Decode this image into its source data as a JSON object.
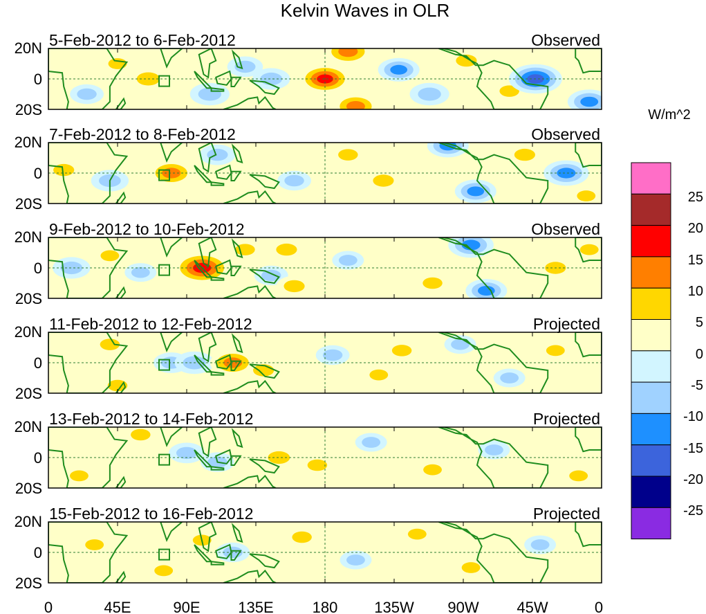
{
  "chart_data": {
    "type": "heatmap",
    "title": "Kelvin Waves in OLR",
    "variable": "OLR anomaly",
    "units": "W/m^2",
    "x_ticks": [
      "0",
      "45E",
      "90E",
      "135E",
      "180",
      "135W",
      "90W",
      "45W",
      "0"
    ],
    "y_ticks": [
      "20N",
      "0",
      "20S"
    ],
    "lon_range": [
      0,
      360
    ],
    "lat_range": [
      -20,
      20
    ],
    "colorbar": {
      "label": "W/m^2",
      "levels": [
        "25",
        "20",
        "15",
        "10",
        "5",
        "0",
        "-5",
        "-10",
        "-15",
        "-20",
        "-25"
      ],
      "colors": [
        "#ff6ec7",
        "#a52a2a",
        "#ff0000",
        "#ff7f00",
        "#ffd700",
        "#ffffc8",
        "#d2f5ff",
        "#a0d2ff",
        "#1e90ff",
        "#3c64dc",
        "#00008b",
        "#8a2be2"
      ]
    },
    "panels": [
      {
        "date_range": "5-Feb-2012 to 6-Feb-2012",
        "status": "Observed",
        "blobs": [
          {
            "lon": 65,
            "lat": 0,
            "value": 9
          },
          {
            "lon": 105,
            "lat": -10,
            "value": -9
          },
          {
            "lon": 128,
            "lat": 8,
            "value": -7
          },
          {
            "lon": 145,
            "lat": 0,
            "value": -8
          },
          {
            "lon": 180,
            "lat": 0,
            "value": 15
          },
          {
            "lon": 195,
            "lat": 18,
            "value": 13
          },
          {
            "lon": 200,
            "lat": -18,
            "value": 12
          },
          {
            "lon": 228,
            "lat": 6,
            "value": -10
          },
          {
            "lon": 248,
            "lat": -10,
            "value": -9
          },
          {
            "lon": 272,
            "lat": 12,
            "value": 7
          },
          {
            "lon": 300,
            "lat": -8,
            "value": 6
          },
          {
            "lon": 317,
            "lat": 0,
            "value": -16
          },
          {
            "lon": 352,
            "lat": -15,
            "value": -11
          },
          {
            "lon": 25,
            "lat": -10,
            "value": -6
          },
          {
            "lon": 45,
            "lat": 10,
            "value": 5
          }
        ]
      },
      {
        "date_range": "7-Feb-2012 to 8-Feb-2012",
        "status": "Observed",
        "blobs": [
          {
            "lon": 10,
            "lat": 2,
            "value": 7
          },
          {
            "lon": 40,
            "lat": -5,
            "value": -8
          },
          {
            "lon": 80,
            "lat": 0,
            "value": 12
          },
          {
            "lon": 110,
            "lat": 12,
            "value": -7
          },
          {
            "lon": 160,
            "lat": -5,
            "value": -6
          },
          {
            "lon": 195,
            "lat": 12,
            "value": 6
          },
          {
            "lon": 218,
            "lat": -5,
            "value": 7
          },
          {
            "lon": 260,
            "lat": 18,
            "value": -10
          },
          {
            "lon": 278,
            "lat": -12,
            "value": -10
          },
          {
            "lon": 310,
            "lat": 12,
            "value": 7
          },
          {
            "lon": 337,
            "lat": 0,
            "value": -12
          },
          {
            "lon": 350,
            "lat": -15,
            "value": 5
          }
        ]
      },
      {
        "date_range": "9-Feb-2012 to 10-Feb-2012",
        "status": "Observed",
        "blobs": [
          {
            "lon": 15,
            "lat": 0,
            "value": -8
          },
          {
            "lon": 40,
            "lat": 8,
            "value": 5
          },
          {
            "lon": 60,
            "lat": -3,
            "value": -5
          },
          {
            "lon": 100,
            "lat": 0,
            "value": 18
          },
          {
            "lon": 128,
            "lat": 12,
            "value": 6
          },
          {
            "lon": 145,
            "lat": -5,
            "value": -6
          },
          {
            "lon": 155,
            "lat": 12,
            "value": 7
          },
          {
            "lon": 160,
            "lat": -12,
            "value": 7
          },
          {
            "lon": 195,
            "lat": 5,
            "value": -5
          },
          {
            "lon": 250,
            "lat": -10,
            "value": 6
          },
          {
            "lon": 275,
            "lat": 15,
            "value": -12
          },
          {
            "lon": 285,
            "lat": -15,
            "value": -10
          },
          {
            "lon": 330,
            "lat": 0,
            "value": 7
          },
          {
            "lon": 352,
            "lat": 12,
            "value": 5
          }
        ]
      },
      {
        "date_range": "11-Feb-2012 to 12-Feb-2012",
        "status": "Projected",
        "blobs": [
          {
            "lon": 40,
            "lat": 12,
            "value": 6
          },
          {
            "lon": 45,
            "lat": -15,
            "value": 6
          },
          {
            "lon": 80,
            "lat": 0,
            "value": -7
          },
          {
            "lon": 95,
            "lat": 0,
            "value": -9
          },
          {
            "lon": 120,
            "lat": 0,
            "value": 12
          },
          {
            "lon": 140,
            "lat": -5,
            "value": 7
          },
          {
            "lon": 185,
            "lat": 5,
            "value": -6
          },
          {
            "lon": 215,
            "lat": -8,
            "value": 5
          },
          {
            "lon": 230,
            "lat": 8,
            "value": 6
          },
          {
            "lon": 268,
            "lat": 12,
            "value": -5
          },
          {
            "lon": 300,
            "lat": -10,
            "value": -5
          },
          {
            "lon": 330,
            "lat": 8,
            "value": 5
          }
        ]
      },
      {
        "date_range": "13-Feb-2012 to 14-Feb-2012",
        "status": "Projected",
        "blobs": [
          {
            "lon": 20,
            "lat": -12,
            "value": 5
          },
          {
            "lon": 60,
            "lat": 15,
            "value": 6
          },
          {
            "lon": 90,
            "lat": 3,
            "value": -7
          },
          {
            "lon": 110,
            "lat": -3,
            "value": -6
          },
          {
            "lon": 150,
            "lat": 0,
            "value": 8
          },
          {
            "lon": 175,
            "lat": -5,
            "value": 6
          },
          {
            "lon": 210,
            "lat": 10,
            "value": -5
          },
          {
            "lon": 250,
            "lat": -8,
            "value": 5
          },
          {
            "lon": 290,
            "lat": 5,
            "value": -5
          },
          {
            "lon": 345,
            "lat": -12,
            "value": 5
          }
        ]
      },
      {
        "date_range": "15-Feb-2012 to 16-Feb-2012",
        "status": "Projected",
        "blobs": [
          {
            "lon": 30,
            "lat": 5,
            "value": 5
          },
          {
            "lon": 75,
            "lat": -12,
            "value": 5
          },
          {
            "lon": 100,
            "lat": 8,
            "value": 5
          },
          {
            "lon": 120,
            "lat": 0,
            "value": -6
          },
          {
            "lon": 165,
            "lat": 10,
            "value": 6
          },
          {
            "lon": 200,
            "lat": -5,
            "value": -5
          },
          {
            "lon": 240,
            "lat": 12,
            "value": 5
          },
          {
            "lon": 275,
            "lat": -10,
            "value": 5
          },
          {
            "lon": 320,
            "lat": 5,
            "value": -5
          }
        ]
      }
    ]
  }
}
